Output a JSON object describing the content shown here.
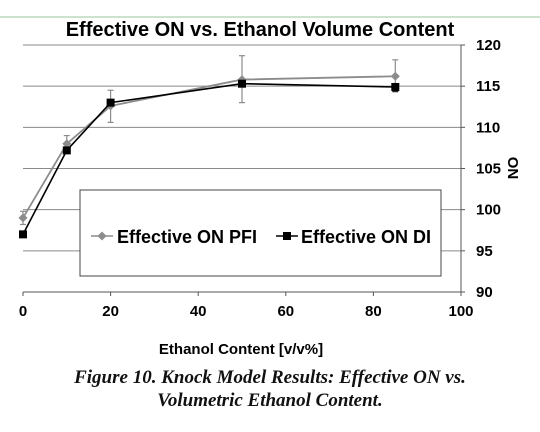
{
  "chart_data": {
    "type": "line",
    "title": "Effective ON vs. Ethanol Volume Content",
    "xlabel": "Ethanol Content [v/v%]",
    "ylabel": "ON",
    "xlim": [
      0,
      100
    ],
    "ylim": [
      90,
      120
    ],
    "x_ticks": [
      0,
      20,
      40,
      60,
      80,
      100
    ],
    "y_ticks": [
      90,
      95,
      100,
      105,
      110,
      115,
      120
    ],
    "y_axis_side": "right",
    "grid": "horizontal",
    "legend_position": "center-bottom",
    "series": [
      {
        "name": "Effective ON PFI",
        "marker": "diamond",
        "color": "#8c8c8c",
        "x": [
          0,
          10,
          20,
          50,
          85
        ],
        "y": [
          99.0,
          108.0,
          112.6,
          115.8,
          116.2
        ],
        "error_low": [
          98.2,
          107.2,
          110.6,
          113.0,
          114.3
        ],
        "error_high": [
          99.8,
          109.0,
          114.5,
          118.7,
          118.2
        ]
      },
      {
        "name": "Effective ON DI",
        "marker": "square",
        "color": "#000000",
        "x": [
          0,
          10,
          20,
          50,
          85
        ],
        "y": [
          97.0,
          107.2,
          113.0,
          115.3,
          114.9
        ],
        "error_low": [
          null,
          null,
          null,
          null,
          114.4
        ],
        "error_high": [
          null,
          null,
          null,
          null,
          115.3
        ]
      }
    ]
  },
  "caption": {
    "line1": "Figure 10. Knock Model Results: Effective ON vs.",
    "line2": "Volumetric Ethanol Content."
  }
}
